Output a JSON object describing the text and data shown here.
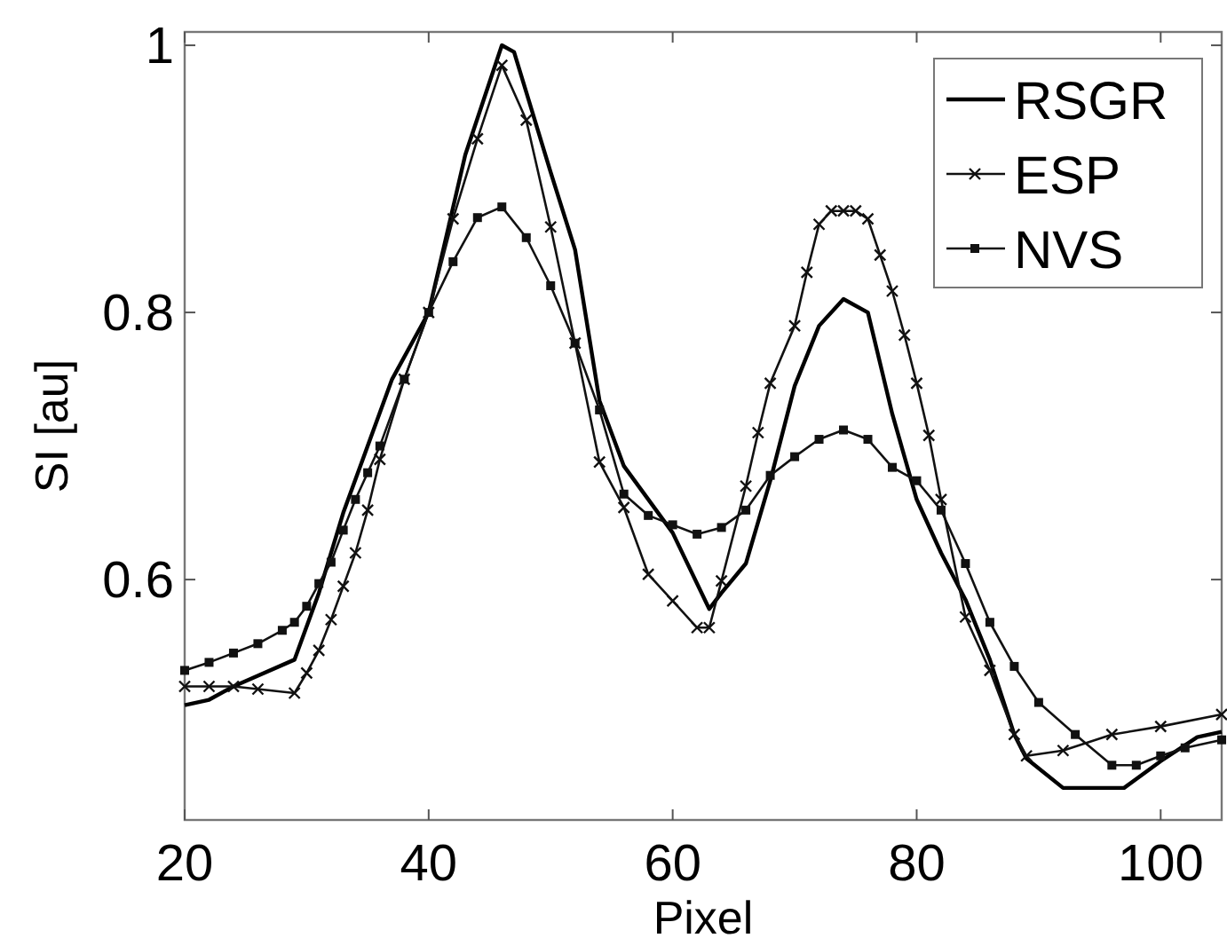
{
  "chart_data": {
    "type": "line",
    "xlabel": "Pixel",
    "ylabel": "SI [au]",
    "xlim": [
      20,
      105
    ],
    "ylim": [
      0.42,
      1.01
    ],
    "xticks": [
      20,
      40,
      60,
      80,
      100
    ],
    "yticks": [
      0.6,
      0.8,
      {
        "value": 1,
        "label": "1"
      }
    ],
    "grid": false,
    "legend": "top right",
    "series": [
      {
        "name": "RSGR",
        "color": "#000000",
        "marker": "none",
        "x": [
          20,
          22,
          24,
          29,
          31,
          33,
          35,
          37,
          40,
          43,
          46,
          47,
          50,
          52,
          54,
          56,
          60,
          63,
          64,
          66,
          68,
          70,
          72,
          74,
          76,
          78,
          80,
          82,
          84,
          86,
          88,
          89,
          92,
          97,
          100,
          103,
          105
        ],
        "values": [
          0.506,
          0.51,
          0.52,
          0.54,
          0.59,
          0.65,
          0.7,
          0.75,
          0.8,
          0.918,
          1.0,
          0.995,
          0.905,
          0.847,
          0.734,
          0.685,
          0.635,
          0.578,
          0.59,
          0.612,
          0.674,
          0.745,
          0.79,
          0.81,
          0.8,
          0.724,
          0.66,
          0.62,
          0.585,
          0.54,
          0.484,
          0.466,
          0.444,
          0.444,
          0.464,
          0.482,
          0.486
        ]
      },
      {
        "name": "ESP",
        "color": "#111111",
        "marker": "cross",
        "x": [
          20,
          22,
          24,
          26,
          29,
          30,
          31,
          32,
          33,
          34,
          35,
          36,
          38,
          40,
          42,
          44,
          46,
          48,
          50,
          52,
          54,
          56,
          58,
          60,
          62,
          63,
          64,
          66,
          67,
          68,
          70,
          71,
          72,
          73,
          74,
          75,
          76,
          77,
          78,
          79,
          80,
          81,
          82,
          84,
          86,
          88,
          89,
          92,
          96,
          100,
          105
        ],
        "values": [
          0.52,
          0.52,
          0.52,
          0.518,
          0.515,
          0.53,
          0.547,
          0.57,
          0.595,
          0.62,
          0.652,
          0.69,
          0.75,
          0.8,
          0.87,
          0.93,
          0.985,
          0.944,
          0.864,
          0.777,
          0.688,
          0.654,
          0.604,
          0.584,
          0.564,
          0.564,
          0.599,
          0.67,
          0.71,
          0.747,
          0.79,
          0.83,
          0.866,
          0.876,
          0.876,
          0.876,
          0.87,
          0.843,
          0.816,
          0.783,
          0.747,
          0.708,
          0.66,
          0.572,
          0.532,
          0.484,
          0.468,
          0.472,
          0.484,
          0.49,
          0.499
        ]
      },
      {
        "name": "NVS",
        "color": "#111111",
        "marker": "square",
        "x": [
          20,
          22,
          24,
          26,
          28,
          29,
          30,
          31,
          32,
          33,
          34,
          35,
          36,
          38,
          40,
          42,
          44,
          46,
          48,
          50,
          52,
          54,
          56,
          58,
          60,
          62,
          64,
          66,
          68,
          70,
          72,
          74,
          76,
          78,
          80,
          82,
          84,
          86,
          88,
          90,
          93,
          96,
          98,
          100,
          102,
          105
        ],
        "values": [
          0.532,
          0.538,
          0.545,
          0.552,
          0.562,
          0.568,
          0.58,
          0.597,
          0.613,
          0.637,
          0.66,
          0.68,
          0.7,
          0.75,
          0.8,
          0.838,
          0.871,
          0.879,
          0.856,
          0.82,
          0.777,
          0.727,
          0.664,
          0.648,
          0.641,
          0.634,
          0.639,
          0.652,
          0.678,
          0.692,
          0.705,
          0.712,
          0.705,
          0.684,
          0.674,
          0.652,
          0.612,
          0.568,
          0.535,
          0.508,
          0.484,
          0.461,
          0.461,
          0.468,
          0.474,
          0.48
        ]
      }
    ]
  }
}
